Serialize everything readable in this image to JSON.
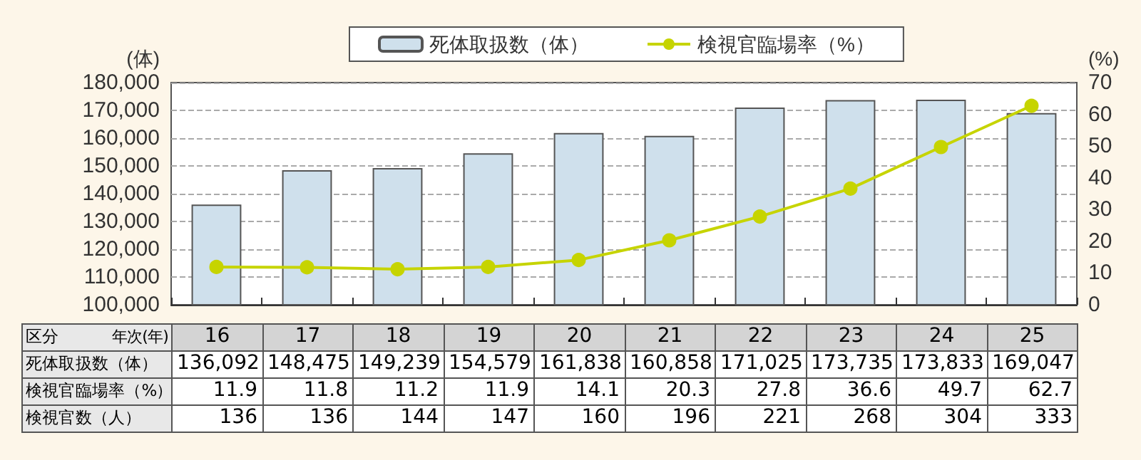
{
  "chart_data": {
    "type": "bar",
    "categories": [
      "16",
      "17",
      "18",
      "19",
      "20",
      "21",
      "22",
      "23",
      "24",
      "25"
    ],
    "series": [
      {
        "name": "死体取扱数（体）",
        "color": "#cfe0ec",
        "values": [
          136092,
          148475,
          149239,
          154579,
          161838,
          160858,
          171025,
          173735,
          173833,
          169047
        ],
        "value_labels": [
          "136,092",
          "148,475",
          "149,239",
          "154,579",
          "161,838",
          "160,858",
          "171,025",
          "173,735",
          "173,833",
          "169,047"
        ]
      },
      {
        "name": "検視官臨場率（%）",
        "type": "line",
        "axis": "y2",
        "color": "#c6d400",
        "values": [
          11.9,
          11.8,
          11.2,
          11.9,
          14.1,
          20.3,
          27.8,
          36.6,
          49.7,
          62.7
        ],
        "value_labels": [
          "11.9",
          "11.8",
          "11.2",
          "11.9",
          "14.1",
          "20.3",
          "27.8",
          "36.6",
          "49.7",
          "62.7"
        ]
      }
    ],
    "xlabel": "年次(年)",
    "ylabel": "(体)",
    "y2label": "(%)",
    "annotations": [
      "区分",
      "検視官数（人）",
      "136",
      "136",
      "144",
      "147",
      "160",
      "196",
      "221",
      "268",
      "304",
      "333"
    ],
    "ylim": [
      100000,
      180000
    ],
    "yticks": [
      {
        "value": 100000,
        "label": "100,000"
      },
      {
        "value": 110000,
        "label": "110,000"
      },
      {
        "value": 120000,
        "label": "120,000"
      },
      {
        "value": 130000,
        "label": "130,000"
      },
      {
        "value": 140000,
        "label": "140,000"
      },
      {
        "value": 150000,
        "label": "150,000"
      },
      {
        "value": 160000,
        "label": "160,000"
      },
      {
        "value": 170000,
        "label": "170,000"
      },
      {
        "value": 180000,
        "label": "180,000"
      }
    ],
    "y2lim": [
      0,
      70
    ],
    "y2ticks": [
      0,
      10,
      20,
      30,
      40,
      50,
      60,
      70
    ],
    "grid": "y",
    "legend": "top",
    "marker": "circle",
    "line_style": "solid"
  }
}
